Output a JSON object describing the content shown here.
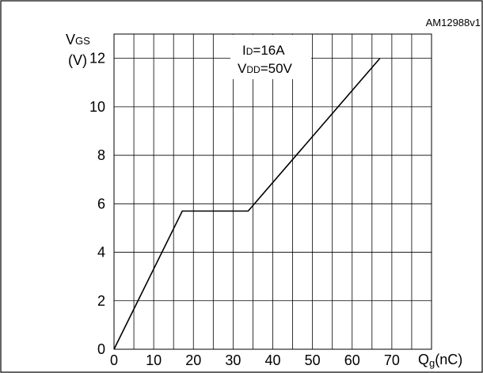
{
  "chart_data": {
    "type": "line",
    "figure_id": "AM12988v1",
    "ylabel": {
      "main": "V",
      "sub": "GS",
      "unit": "(V)"
    },
    "xlabel": {
      "main": "Q",
      "sub": "g",
      "unit": "(nC)"
    },
    "annotation": {
      "line1": {
        "main": "I",
        "sub": "D",
        "rest": "=16A"
      },
      "line2": {
        "main": "V",
        "sub": "DD",
        "rest": "=50V"
      }
    },
    "xlim": [
      0,
      80
    ],
    "ylim": [
      0,
      13
    ],
    "xticks": [
      0,
      10,
      20,
      30,
      40,
      50,
      60,
      70
    ],
    "yticks": [
      0,
      2,
      4,
      6,
      8,
      10,
      12
    ],
    "grid": true,
    "series": [
      {
        "x": [
          0,
          17.2,
          33.8,
          67
        ],
        "y": [
          0,
          5.7,
          5.7,
          12
        ]
      }
    ]
  }
}
